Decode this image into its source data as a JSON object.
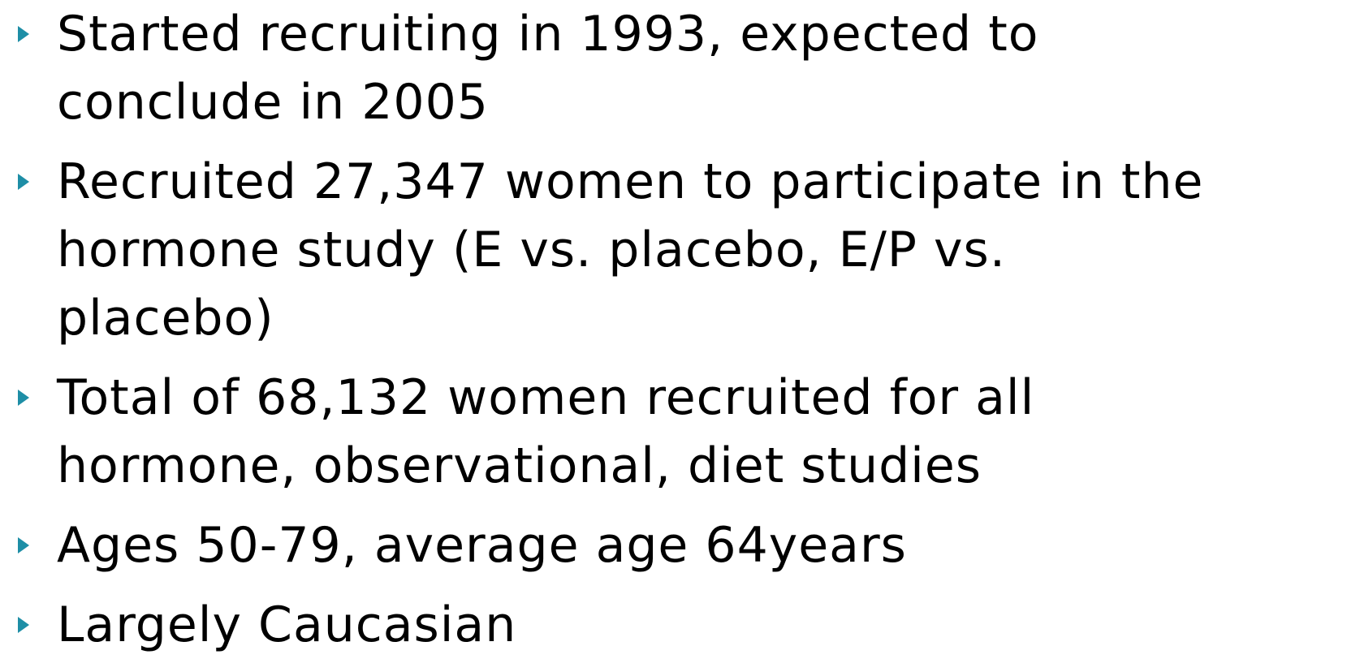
{
  "bullets": [
    {
      "lines": [
        "Started recruiting in 1993, expected to",
        "conclude in 2005"
      ]
    },
    {
      "lines": [
        "Recruited 27,347 women to participate in the",
        "hormone study (E vs. placebo, E/P vs.",
        "placebo)"
      ]
    },
    {
      "lines": [
        "Total of 68,132 women recruited for all",
        "hormone, observational, diet studies"
      ]
    },
    {
      "lines": [
        "Ages 50-79, average age 64years"
      ]
    },
    {
      "lines": [
        "Largely Caucasian"
      ]
    }
  ]
}
